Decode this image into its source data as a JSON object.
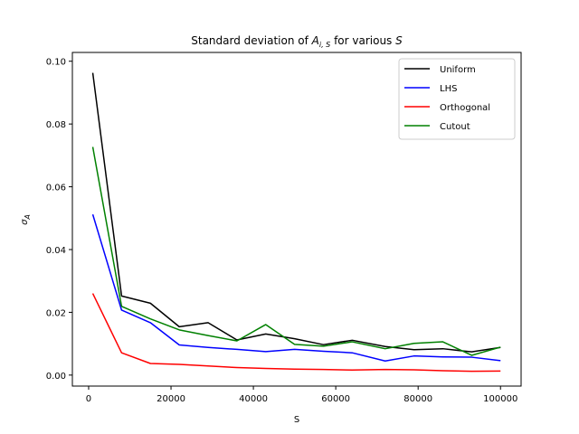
{
  "chart_data": {
    "type": "line",
    "title_prefix": "Standard deviation of ",
    "title_math_base": "A",
    "title_math_sub": "i, S",
    "title_suffix": " for various ",
    "title_math_end": "S",
    "xlabel": "S",
    "ylabel_base": "σ",
    "ylabel_sub": "A",
    "xlim": [
      -3950,
      105000
    ],
    "ylim": [
      -0.0035,
      0.1028
    ],
    "xticks": [
      0,
      20000,
      40000,
      60000,
      80000,
      100000
    ],
    "xtick_labels": [
      "0",
      "20000",
      "40000",
      "60000",
      "80000",
      "100000"
    ],
    "yticks": [
      0.0,
      0.02,
      0.04,
      0.06,
      0.08,
      0.1
    ],
    "ytick_labels": [
      "0.00",
      "0.02",
      "0.04",
      "0.06",
      "0.08",
      "0.10"
    ],
    "legend_position": "top-right",
    "x": [
      1000,
      8000,
      15000,
      22000,
      29000,
      36000,
      43000,
      50000,
      57000,
      64000,
      72000,
      79000,
      86000,
      93000,
      100000
    ],
    "series": [
      {
        "name": "Uniform",
        "color": "#000000",
        "values": [
          0.0963,
          0.0252,
          0.0229,
          0.0154,
          0.0167,
          0.0112,
          0.0131,
          0.0116,
          0.0097,
          0.0111,
          0.0091,
          0.0081,
          0.0084,
          0.0074,
          0.0088
        ]
      },
      {
        "name": "LHS",
        "color": "#0000ff",
        "values": [
          0.0512,
          0.0207,
          0.0167,
          0.0096,
          0.0088,
          0.0082,
          0.0075,
          0.0082,
          0.0076,
          0.0071,
          0.0045,
          0.0061,
          0.0058,
          0.0057,
          0.0046
        ]
      },
      {
        "name": "Orthogonal",
        "color": "#ff0000",
        "values": [
          0.026,
          0.0071,
          0.0037,
          0.0034,
          0.0029,
          0.0024,
          0.0021,
          0.0019,
          0.0018,
          0.0016,
          0.0018,
          0.0017,
          0.0014,
          0.0012,
          0.0013
        ]
      },
      {
        "name": "Cutout",
        "color": "#008000",
        "values": [
          0.0727,
          0.0219,
          0.0179,
          0.0144,
          0.0126,
          0.0109,
          0.0161,
          0.0098,
          0.0092,
          0.0106,
          0.0084,
          0.0101,
          0.0106,
          0.0063,
          0.0089
        ]
      }
    ]
  }
}
